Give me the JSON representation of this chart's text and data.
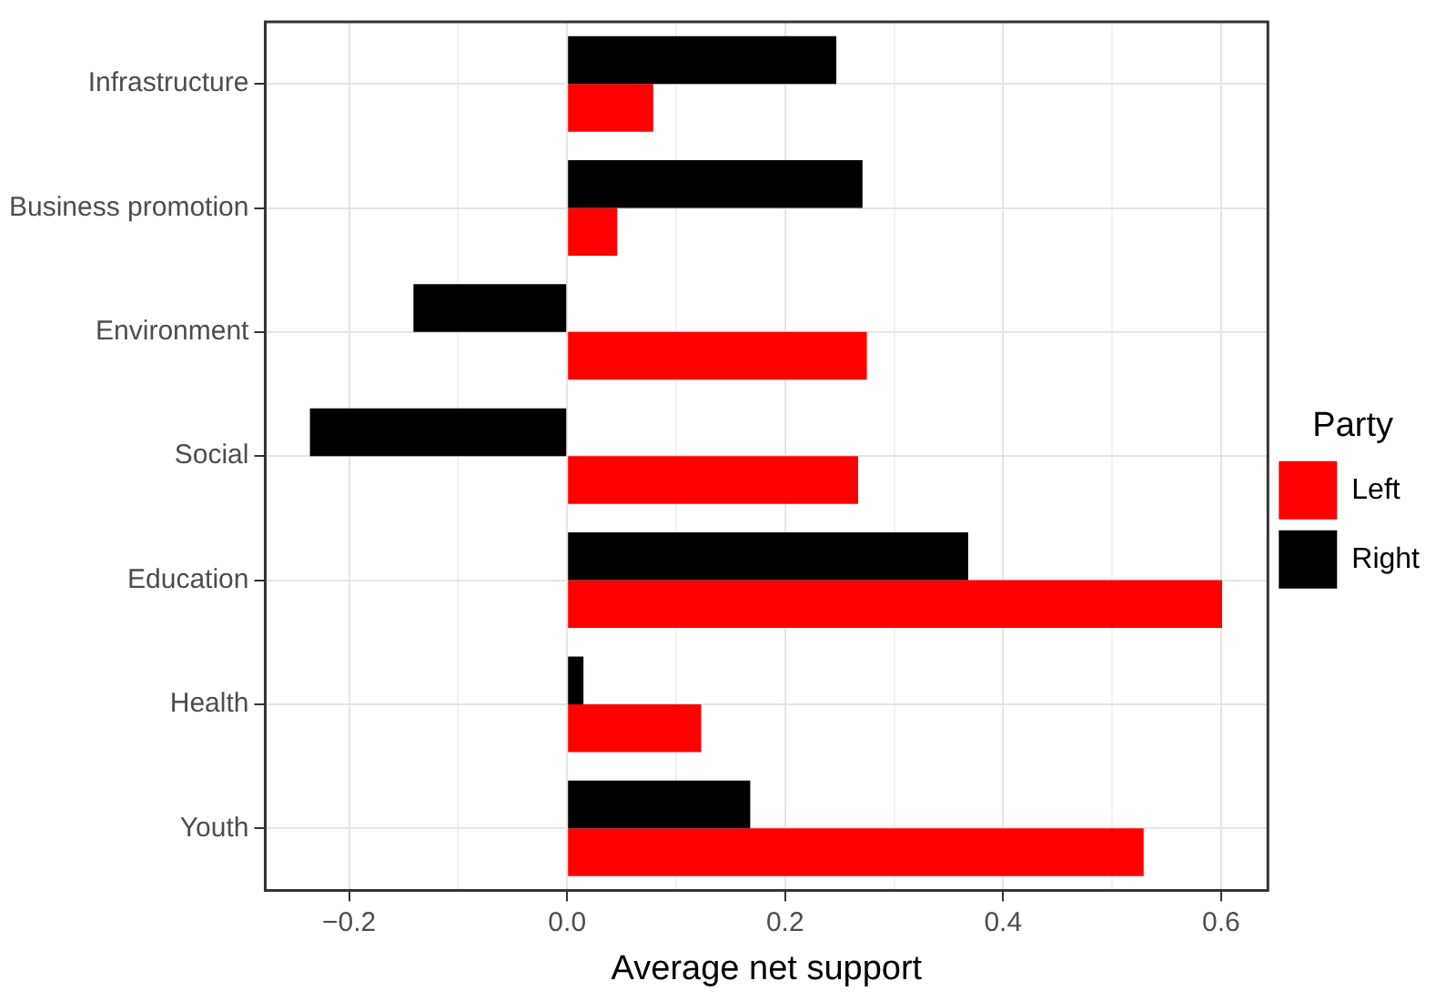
{
  "chart_data": {
    "type": "bar",
    "orientation": "horizontal",
    "xlabel": "Average net support",
    "legend_title": "Party",
    "legend": "right",
    "grid": true,
    "categories": [
      "Infrastructure",
      "Business promotion",
      "Environment",
      "Social",
      "Education",
      "Health",
      "Youth"
    ],
    "xlim": [
      -0.277,
      0.643
    ],
    "xticks": [
      {
        "value": -0.2,
        "label": "−0.2"
      },
      {
        "value": -0.1,
        "label": null
      },
      {
        "value": 0,
        "label": "0.0"
      },
      {
        "value": 0.1,
        "label": null
      },
      {
        "value": 0.2,
        "label": "0.2"
      },
      {
        "value": 0.3,
        "label": null
      },
      {
        "value": 0.4,
        "label": "0.4"
      },
      {
        "value": 0.5,
        "label": null
      },
      {
        "value": 0.6,
        "label": "0.6"
      }
    ],
    "series": [
      {
        "name": "Left",
        "color": "#ff0000",
        "values": [
          0.079,
          0.046,
          0.275,
          0.267,
          0.601,
          0.123,
          0.529
        ]
      },
      {
        "name": "Right",
        "color": "#000000",
        "values": [
          0.247,
          0.271,
          -0.141,
          -0.236,
          0.368,
          0.015,
          0.168
        ]
      }
    ]
  }
}
